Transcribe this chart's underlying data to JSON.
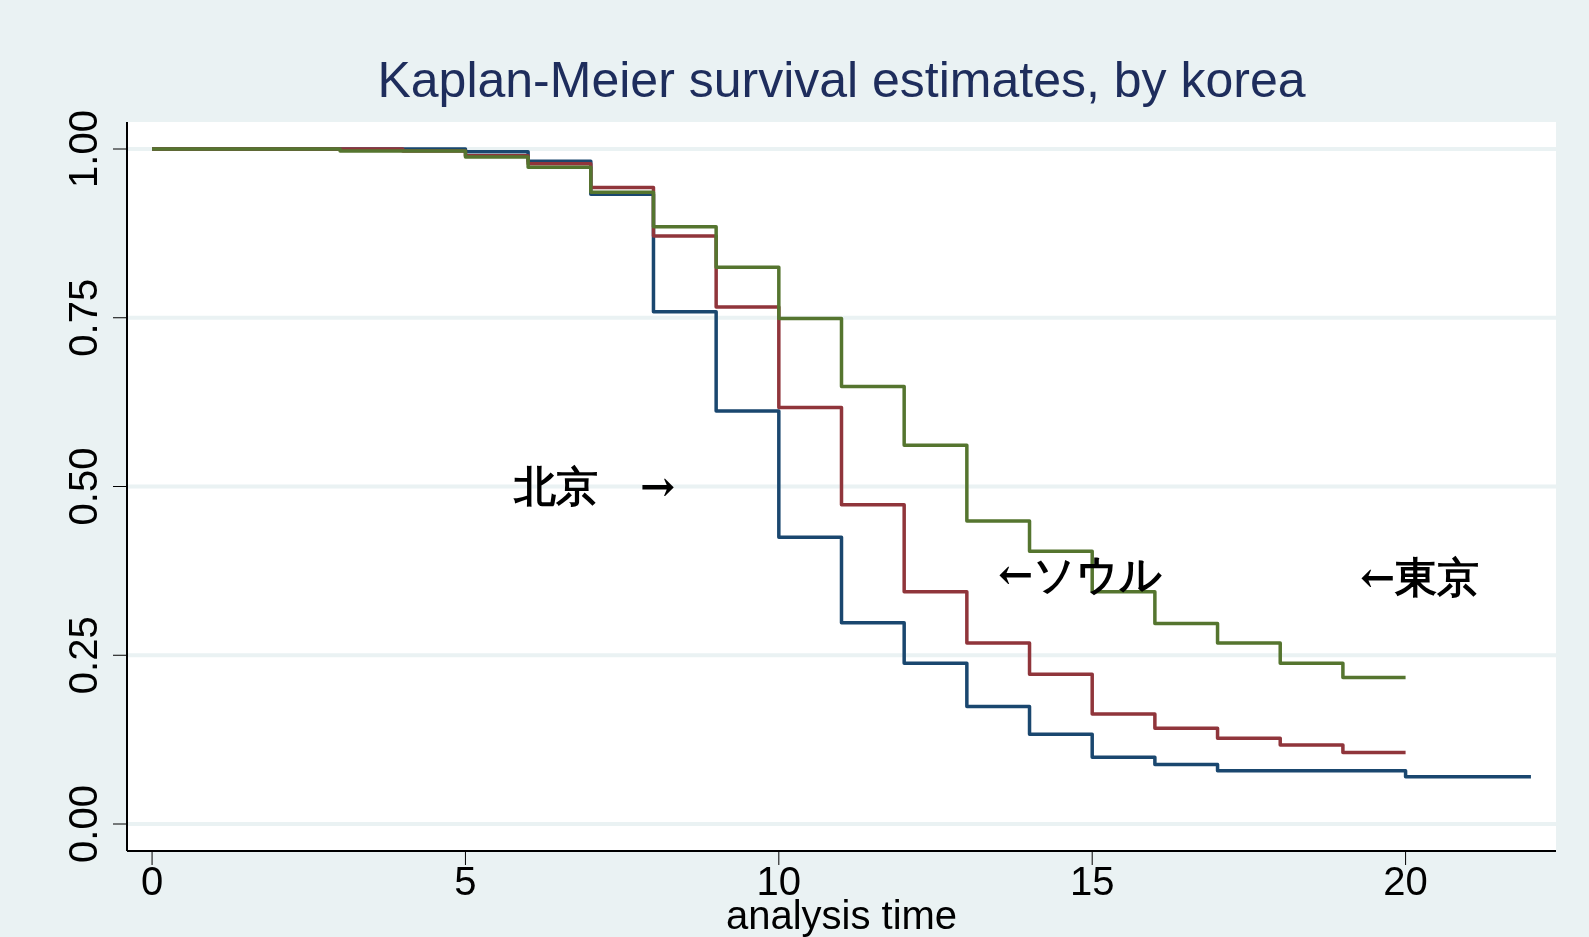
{
  "chart_data": {
    "type": "step",
    "title": "Kaplan-Meier survival estimates, by korea",
    "xlabel": "analysis time",
    "xlim": [
      -0.4,
      22.4
    ],
    "xticks": [
      0,
      5,
      10,
      15,
      20
    ],
    "ylim": [
      -0.04,
      1.04
    ],
    "yticks": [
      {
        "value": 0,
        "label": "0.00"
      },
      {
        "value": 0.25,
        "label": "0.25"
      },
      {
        "value": 0.5,
        "label": "0.50"
      },
      {
        "value": 0.75,
        "label": "0.75"
      },
      {
        "value": 1,
        "label": "1.00"
      }
    ],
    "grid": "y",
    "legend": false,
    "series": [
      {
        "color": "#1a476f",
        "x": [
          0,
          5,
          6,
          7,
          8,
          9,
          10,
          11,
          12,
          13,
          14,
          15,
          16,
          17,
          18,
          19,
          20,
          21,
          22
        ],
        "values": [
          1.0,
          0.996,
          0.982,
          0.933,
          0.759,
          0.612,
          0.425,
          0.298,
          0.238,
          0.174,
          0.133,
          0.099,
          0.088,
          0.079,
          0.079,
          0.079,
          0.07,
          0.07,
          0.07
        ]
      },
      {
        "color": "#90353b",
        "x": [
          0,
          4,
          5,
          6,
          7,
          8,
          9,
          10,
          11,
          12,
          13,
          14,
          15,
          16,
          17,
          18,
          19,
          20
        ],
        "values": [
          1.0,
          0.997,
          0.99,
          0.978,
          0.943,
          0.871,
          0.766,
          0.617,
          0.473,
          0.344,
          0.268,
          0.222,
          0.163,
          0.142,
          0.127,
          0.117,
          0.106,
          0.106
        ]
      },
      {
        "color": "#55752f",
        "x": [
          0,
          3,
          5,
          6,
          7,
          8,
          9,
          10,
          11,
          12,
          13,
          14,
          15,
          16,
          17,
          18,
          19,
          20
        ],
        "values": [
          1.0,
          0.997,
          0.988,
          0.973,
          0.936,
          0.885,
          0.825,
          0.749,
          0.648,
          0.561,
          0.449,
          0.404,
          0.344,
          0.297,
          0.268,
          0.238,
          0.217,
          0.217
        ]
      }
    ],
    "annotations": [
      "北京　→",
      "←ソウル",
      "←東京"
    ]
  }
}
